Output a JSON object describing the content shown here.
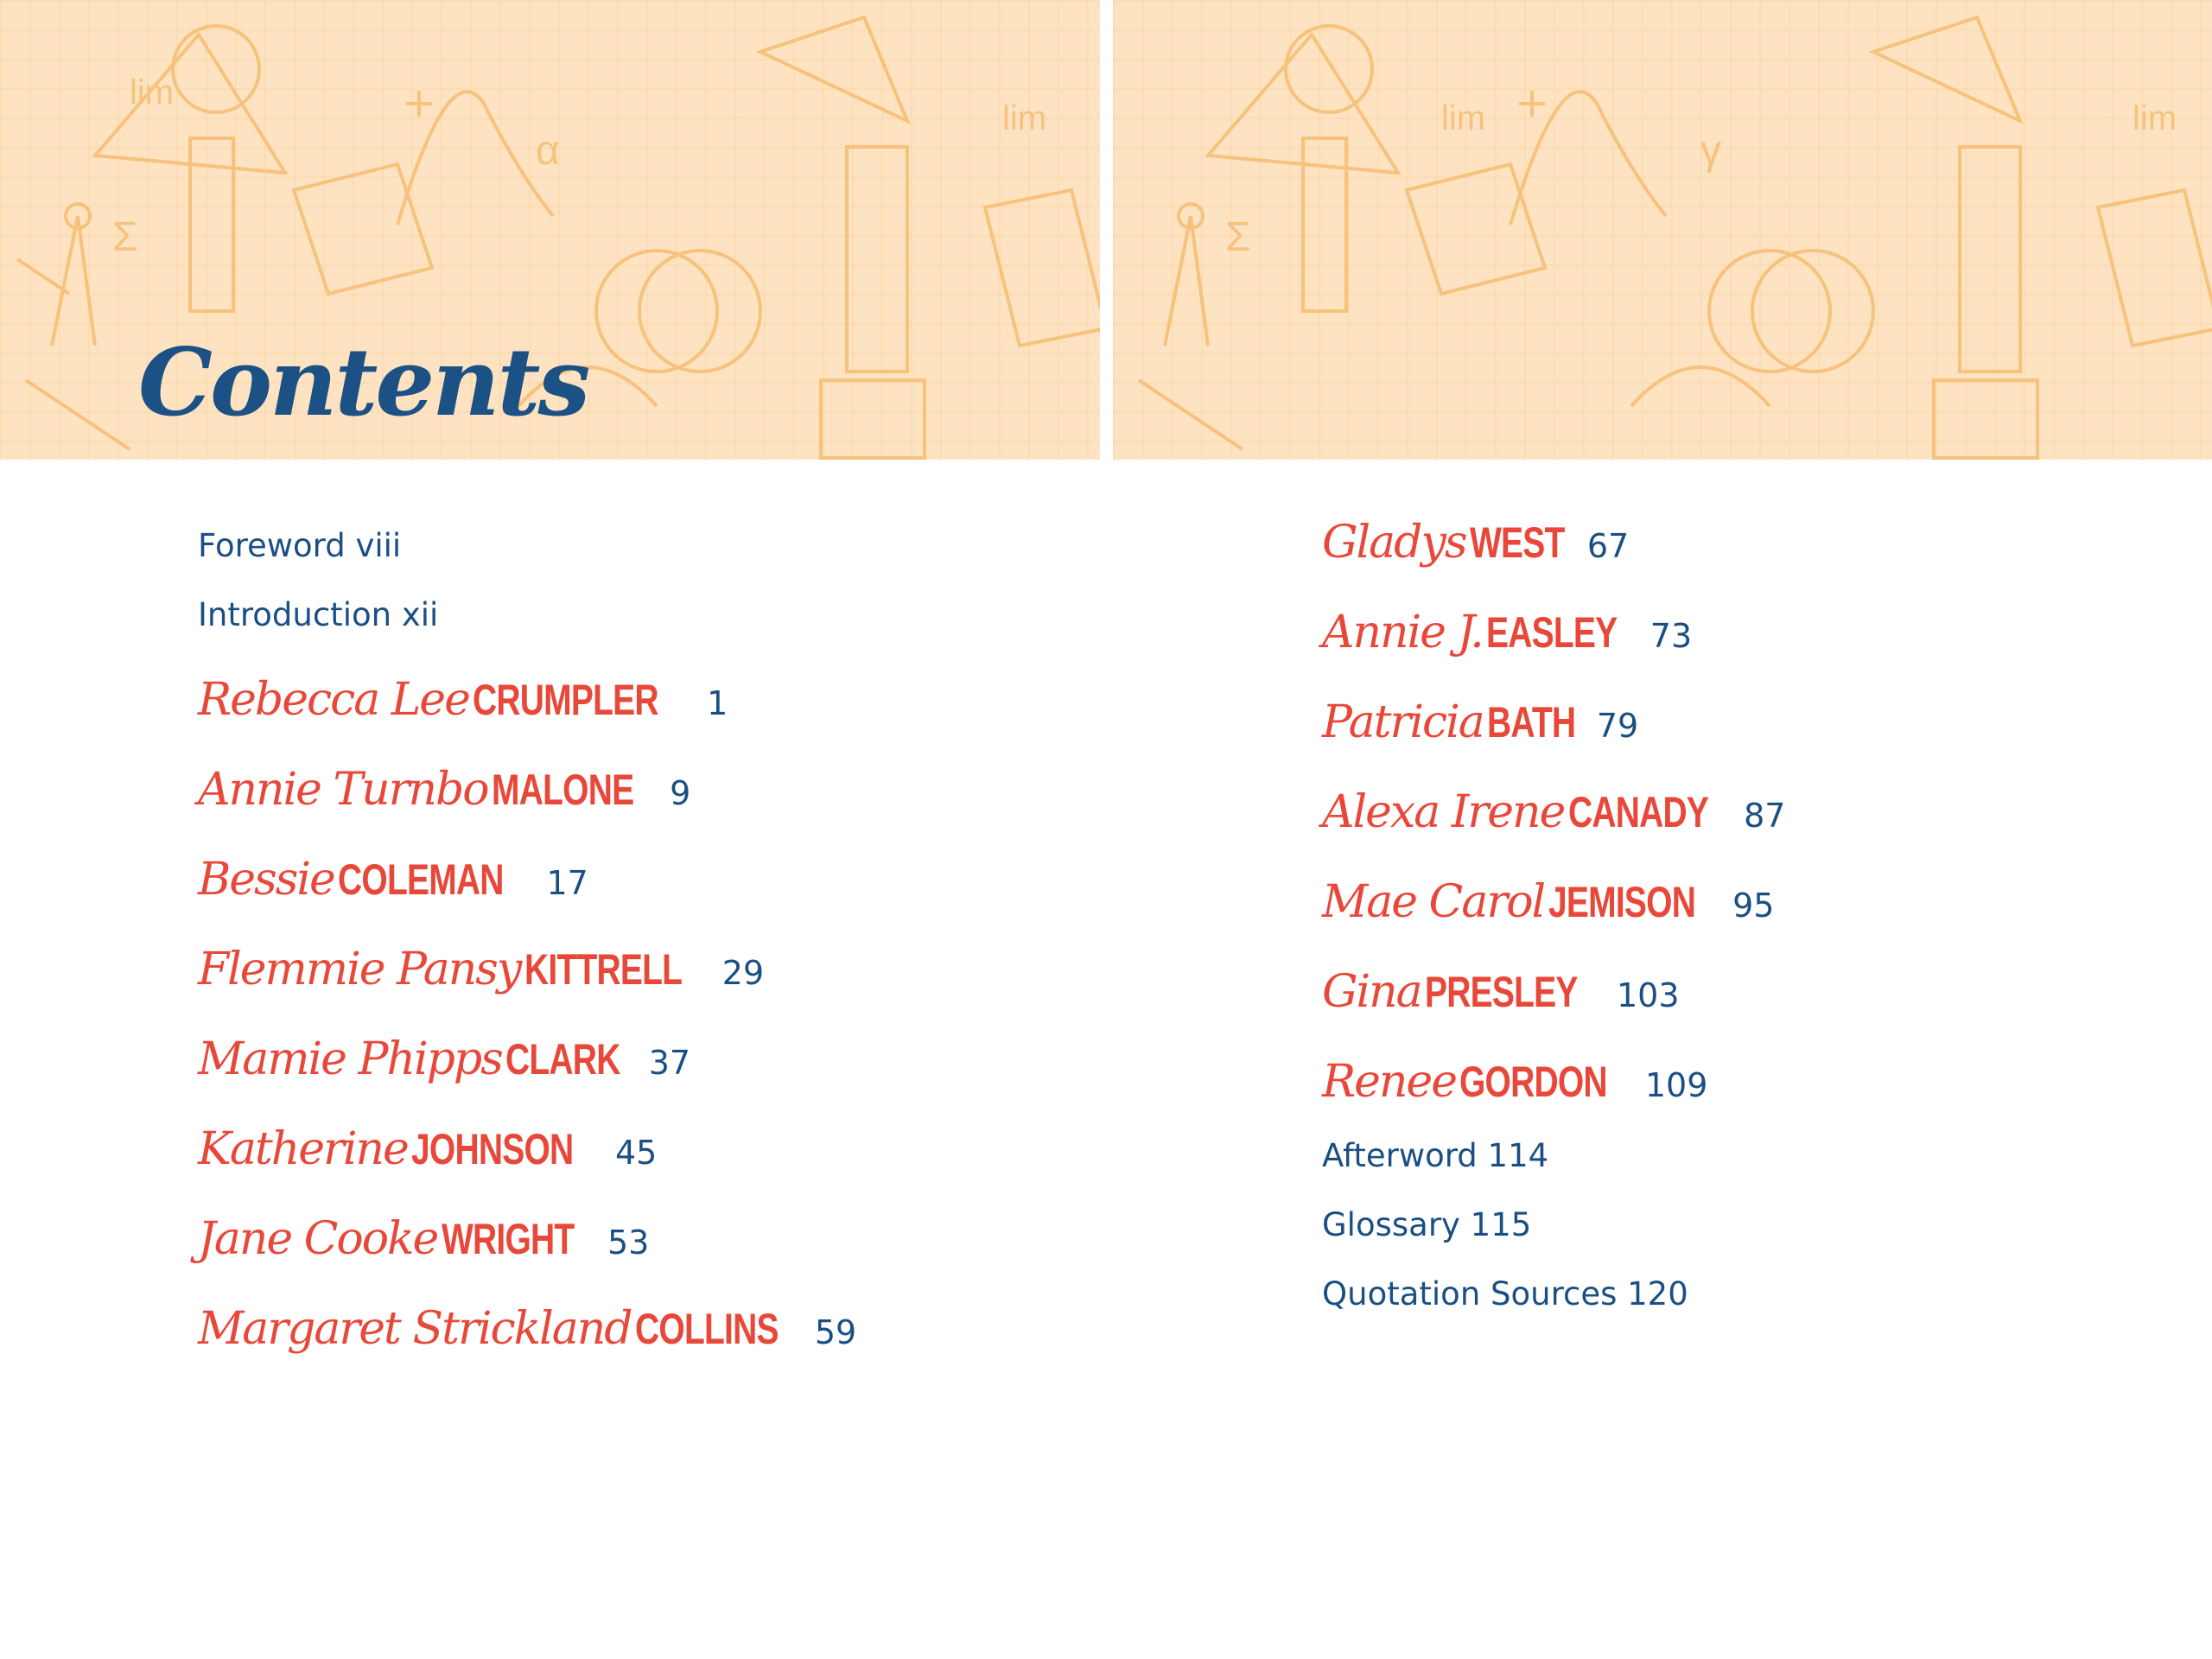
{
  "title": "Contents",
  "colors": {
    "banner_bg": "#fde3c2",
    "doodle": "#f6c27c",
    "name_red": "#e8483a",
    "text_blue": "#1b4f84"
  },
  "left_column": {
    "front_matter": [
      {
        "label": "Foreword viii"
      },
      {
        "label": "Introduction xii"
      }
    ],
    "chapters": [
      {
        "first": "Rebecca Lee",
        "last": "CRUMPLER",
        "page": "1"
      },
      {
        "first": "Annie Turnbo",
        "last": "MALONE",
        "page": "9"
      },
      {
        "first": "Bessie",
        "last": "COLEMAN",
        "page": "17"
      },
      {
        "first": "Flemmie Pansy",
        "last": "KITTRELL",
        "page": "29"
      },
      {
        "first": "Mamie Phipps",
        "last": "CLARK",
        "page": "37"
      },
      {
        "first": "Katherine",
        "last": "JOHNSON",
        "page": "45"
      },
      {
        "first": "Jane Cooke",
        "last": "WRIGHT",
        "page": "53"
      },
      {
        "first": "Margaret Strickland",
        "last": "COLLINS",
        "page": "59"
      }
    ]
  },
  "right_column": {
    "chapters": [
      {
        "first": "Gladys",
        "last": "WEST",
        "page": "67"
      },
      {
        "first": "Annie J.",
        "last": "EASLEY",
        "page": "73"
      },
      {
        "first": "Patricia",
        "last": "BATH",
        "page": "79"
      },
      {
        "first": "Alexa Irene",
        "last": "CANADY",
        "page": "87"
      },
      {
        "first": "Mae Carol",
        "last": "JEMISON",
        "page": "95"
      },
      {
        "first": "Gina",
        "last": "PRESLEY",
        "page": "103"
      },
      {
        "first": "Renee",
        "last": "GORDON",
        "page": "109"
      }
    ],
    "back_matter": [
      {
        "label": "Afterword 114"
      },
      {
        "label": "Glossary 115"
      },
      {
        "label": "Quotation Sources 120"
      }
    ]
  }
}
